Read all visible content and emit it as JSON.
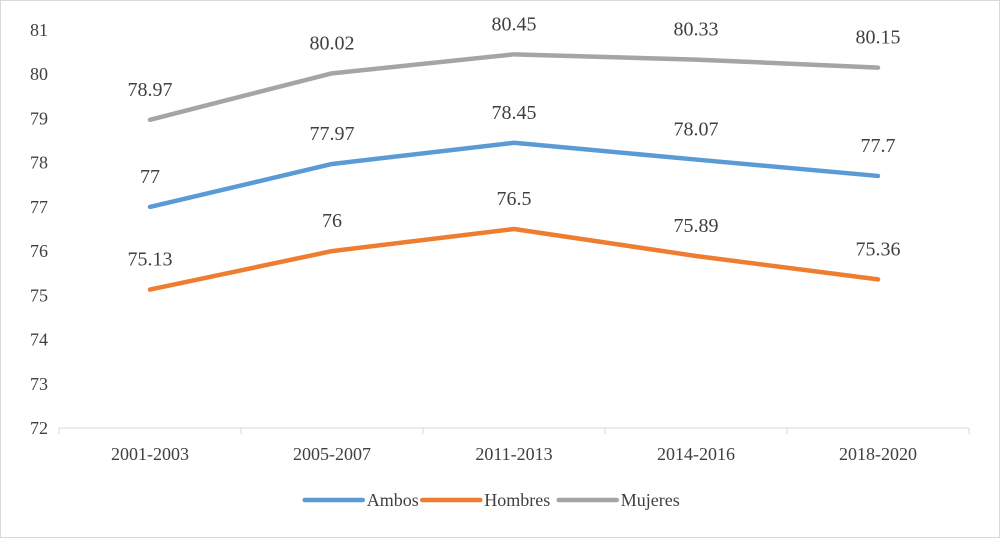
{
  "chart_data": {
    "type": "line",
    "title": "",
    "xlabel": "",
    "ylabel": "",
    "categories": [
      "2001-2003",
      "2005-2007",
      "2011-2013",
      "2014-2016",
      "2018-2020"
    ],
    "ylim": [
      72,
      81
    ],
    "yticks": [
      72,
      73,
      74,
      75,
      76,
      77,
      78,
      79,
      80,
      81
    ],
    "grid": false,
    "legend_position": "bottom",
    "series": [
      {
        "name": "Ambos",
        "color": "#5b9bd5",
        "values": [
          77,
          77.97,
          78.45,
          78.07,
          77.7
        ],
        "labels": [
          "77",
          "77.97",
          "78.45",
          "78.07",
          "77.7"
        ]
      },
      {
        "name": "Hombres",
        "color": "#ed7d31",
        "values": [
          75.13,
          76,
          76.5,
          75.89,
          75.36
        ],
        "labels": [
          "75.13",
          "76",
          "76.5",
          "75.89",
          "75.36"
        ]
      },
      {
        "name": "Mujeres",
        "color": "#a5a5a5",
        "values": [
          78.97,
          80.02,
          80.45,
          80.33,
          80.15
        ],
        "labels": [
          "78.97",
          "80.02",
          "80.45",
          "80.33",
          "80.15"
        ]
      }
    ]
  }
}
